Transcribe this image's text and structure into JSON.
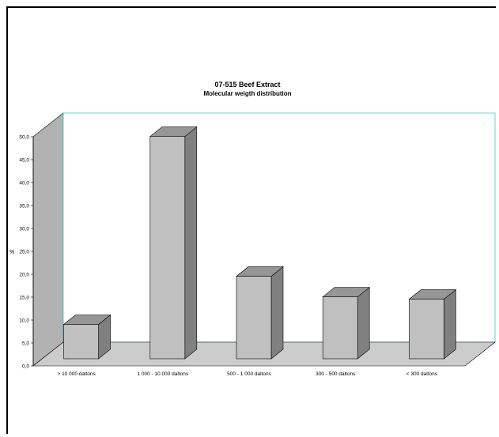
{
  "chart_data": {
    "type": "bar",
    "title": "07-515 Beef Extract",
    "subtitle": "Molecular weigth distribution",
    "ylabel": "%",
    "xlabel": "",
    "ylim": [
      0,
      50
    ],
    "yticks": [
      "0,0",
      "5,0",
      "10,0",
      "15,0",
      "20,0",
      "25,0",
      "30,0",
      "35,0",
      "40,0",
      "45,0",
      "50,0"
    ],
    "categories": [
      "> 10 000 daltons",
      "1 000 - 10 000 daltons",
      "500 - 1 000 daltons",
      "300 - 500 daltons",
      "< 300 daltons"
    ],
    "values": [
      7.5,
      48.5,
      18.0,
      13.5,
      13.0
    ],
    "grid": false,
    "legend": "none",
    "colors": {
      "bar_front": "#c0c0c0",
      "bar_top": "#969696",
      "bar_side": "#808080",
      "wall": "#b2b2b2",
      "floor": "#cccccc",
      "wall_edge": "#33cccc"
    }
  }
}
